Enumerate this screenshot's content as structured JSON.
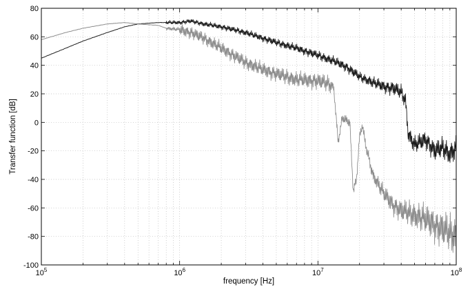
{
  "chart_data": {
    "type": "line",
    "x_scale": "log",
    "xlim": [
      100000,
      100000000
    ],
    "ylim": [
      -100,
      80
    ],
    "xlabel": "frequency [Hz]",
    "ylabel": "Transfer function [dB]",
    "grid": true,
    "x_ticks": [
      {
        "value": 100000,
        "base": "10",
        "exp": "5"
      },
      {
        "value": 1000000,
        "base": "10",
        "exp": "6"
      },
      {
        "value": 10000000,
        "base": "10",
        "exp": "7"
      },
      {
        "value": 100000000,
        "base": "10",
        "exp": "8"
      }
    ],
    "y_ticks": [
      "80",
      "60",
      "40",
      "20",
      "0",
      "-20",
      "-40",
      "-60",
      "-80",
      "-100"
    ],
    "series": [
      {
        "color": "#1a1a1a",
        "x": [
          100000,
          150000,
          200000,
          300000,
          400000,
          500000,
          700000,
          1000000,
          1200000,
          1500000,
          2000000,
          3000000,
          4000000,
          5000000,
          7000000,
          10000000,
          13000000,
          16000000,
          20000000,
          25000000,
          30000000,
          35000000,
          40000000,
          43000000,
          45000000,
          50000000,
          60000000,
          70000000,
          80000000,
          90000000,
          100000000
        ],
        "y": [
          45,
          52,
          57,
          63,
          67,
          69,
          70,
          70,
          71,
          69,
          67,
          63,
          59,
          56,
          52,
          47,
          43,
          39,
          32,
          28,
          25,
          24,
          21,
          15,
          -8,
          -16,
          -12,
          -20,
          -18,
          -22,
          -18
        ]
      },
      {
        "color": "#8c8c8c",
        "x": [
          100000,
          150000,
          200000,
          300000,
          400000,
          500000,
          700000,
          800000,
          1000000,
          1200000,
          1500000,
          2000000,
          3000000,
          4000000,
          5000000,
          7000000,
          10000000,
          12000000,
          13000000,
          14000000,
          15000000,
          17000000,
          18000000,
          19000000,
          20000000,
          21000000,
          22000000,
          25000000,
          30000000,
          35000000,
          40000000,
          50000000,
          60000000,
          70000000,
          80000000,
          90000000,
          100000000
        ],
        "y": [
          58,
          63,
          66,
          69,
          70,
          69,
          68,
          66,
          65,
          63,
          59,
          52,
          42,
          37,
          34,
          30,
          29,
          27,
          25,
          -14,
          3,
          0,
          -48,
          -40,
          -10,
          -2,
          -15,
          -37,
          -50,
          -58,
          -62,
          -65,
          -68,
          -72,
          -75,
          -78,
          -80
        ]
      }
    ]
  }
}
